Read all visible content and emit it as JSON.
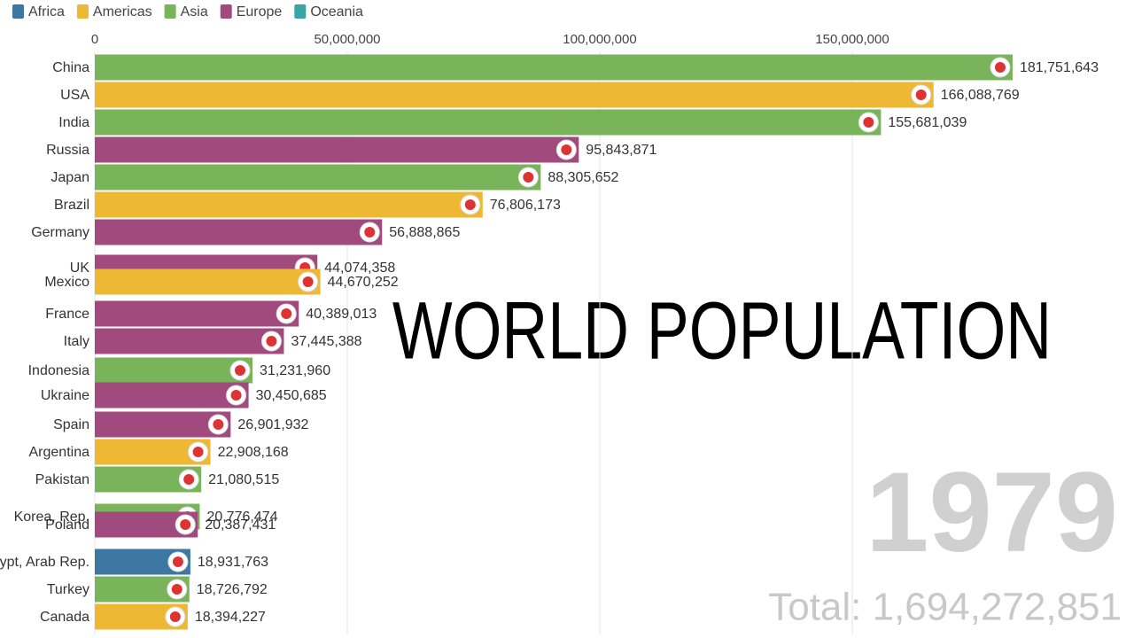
{
  "chart_data": {
    "type": "bar",
    "orientation": "horizontal",
    "title": "WORLD POPULATION",
    "year_label": "1979",
    "total_label": "Total: 1,694,272,851",
    "legend": [
      {
        "name": "Africa",
        "color": "#3d78a3"
      },
      {
        "name": "Americas",
        "color": "#eeb834"
      },
      {
        "name": "Asia",
        "color": "#79b35a"
      },
      {
        "name": "Europe",
        "color": "#a04a7e"
      },
      {
        "name": "Oceania",
        "color": "#3aa5a5"
      }
    ],
    "categories": [
      "China",
      "USA",
      "India",
      "Russia",
      "Japan",
      "Brazil",
      "Germany",
      "UK",
      "Mexico",
      "France",
      "Italy",
      "Indonesia",
      "Ukraine",
      "Spain",
      "Argentina",
      "Pakistan",
      "Korea, Rep.",
      "Poland",
      "Egypt, Arab Rep.",
      "Turkey",
      "Canada"
    ],
    "regions": [
      "Asia",
      "Americas",
      "Asia",
      "Europe",
      "Asia",
      "Americas",
      "Europe",
      "Europe",
      "Americas",
      "Europe",
      "Europe",
      "Asia",
      "Europe",
      "Europe",
      "Americas",
      "Asia",
      "Asia",
      "Europe",
      "Africa",
      "Asia",
      "Americas"
    ],
    "values": [
      181751643,
      166088769,
      155681039,
      95843871,
      88305652,
      76806173,
      56888865,
      44074358,
      44670252,
      40389013,
      37445388,
      31231960,
      30450685,
      26901932,
      22908168,
      21080515,
      20776474,
      20387431,
      18931763,
      18726792,
      18394227
    ],
    "value_labels": [
      "181,751,643",
      "166,088,769",
      "155,681,039",
      "95,843,871",
      "88,305,652",
      "76,806,173",
      "56,888,865",
      "44,074,358",
      "44,670,252",
      "40,389,013",
      "37,445,388",
      "31,231,960",
      "30,450,685",
      "26,901,932",
      "22,908,168",
      "21,080,515",
      "20,776,474",
      "20,387,431",
      "18,931,763",
      "18,726,792",
      "18,394,227"
    ],
    "xlim": [
      0,
      200000000
    ],
    "xticks": [
      0,
      {
        "value": 50000000,
        "label": "50,000,000"
      },
      {
        "value": 100000000,
        "label": "100,000,000"
      },
      {
        "value": 150000000,
        "label": "150,000,000"
      }
    ],
    "grid": true
  }
}
